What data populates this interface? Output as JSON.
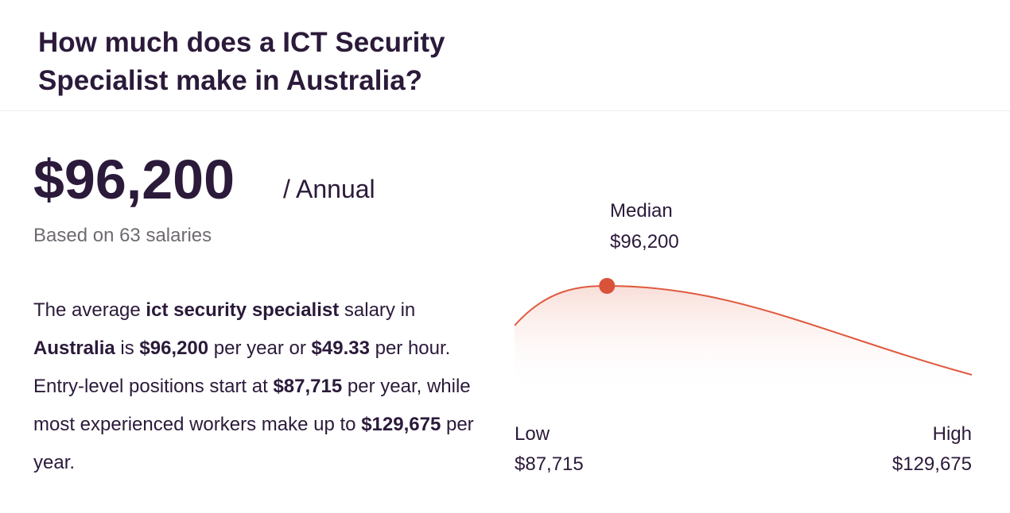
{
  "header": {
    "title": "How much does a ICT Security Specialist make in Australia?"
  },
  "salary": {
    "amount": "$96,200",
    "period": "/ Annual",
    "based_on": "Based on 63 salaries"
  },
  "description": {
    "t1": "The average ",
    "b1": "ict security specialist",
    "t2": " salary in ",
    "b2": "Australia",
    "t3": " is ",
    "b3": "$96,200",
    "t4": " per year or ",
    "b4": "$49.33",
    "t5": " per hour. Entry-level positions start at ",
    "b5": "$87,715",
    "t6": " per year, while most experienced workers make up to ",
    "b6": "$129,675",
    "t7": " per year."
  },
  "chart_data": {
    "type": "area",
    "title": "",
    "median_label": "Median",
    "median_value": "$96,200",
    "low_label": "Low",
    "low_value": "$87,715",
    "high_label": "High",
    "high_value": "$129,675",
    "low": 87715,
    "median": 96200,
    "high": 129675,
    "line_color": "#e05a3f",
    "marker_color": "#d9533b"
  }
}
